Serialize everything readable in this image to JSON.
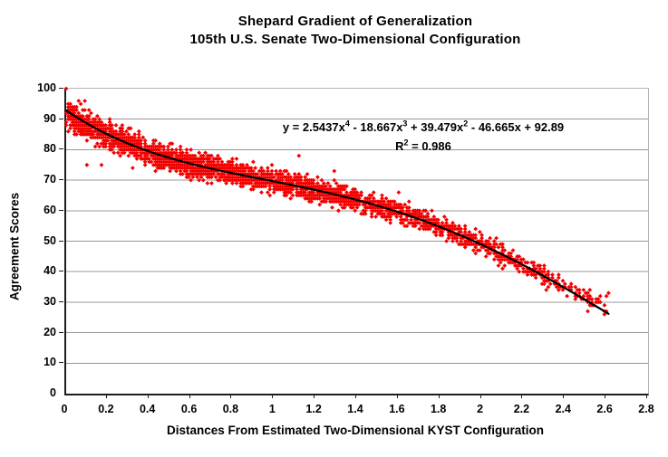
{
  "title": {
    "line1": "Shepard Gradient of Generalization",
    "line2": "105th U.S. Senate Two-Dimensional Configuration"
  },
  "equation": {
    "line1_parts": [
      [
        "y = 2.5437x",
        0
      ],
      [
        "4",
        1
      ],
      [
        " - 18.667x",
        0
      ],
      [
        "3",
        1
      ],
      [
        " + 39.479x",
        0
      ],
      [
        "2",
        1
      ],
      [
        " - 46.665x + 92.89",
        0
      ]
    ],
    "line2_parts": [
      [
        "R",
        0
      ],
      [
        "2",
        1
      ],
      [
        " = 0.986",
        0
      ]
    ]
  },
  "axes": {
    "x": {
      "title": "Distances From Estimated Two-Dimensional KYST Configuration",
      "tick_values": [
        0,
        0.2,
        0.4,
        0.6,
        0.8,
        1,
        1.2,
        1.4,
        1.6,
        1.8,
        2,
        2.2,
        2.4,
        2.6,
        2.8
      ],
      "tick_labels": [
        "0",
        "0.2",
        "0.4",
        "0.6",
        "0.8",
        "1",
        "1.2",
        "1.4",
        "1.6",
        "1.8",
        "2",
        "2.2",
        "2.4",
        "2.6",
        "2.8"
      ]
    },
    "y": {
      "title": "Agreement Scores",
      "tick_values": [
        0,
        10,
        20,
        30,
        40,
        50,
        60,
        70,
        80,
        90,
        100
      ],
      "tick_labels": [
        "0",
        "10",
        "20",
        "30",
        "40",
        "50",
        "60",
        "70",
        "80",
        "90",
        "100"
      ]
    }
  },
  "chart_data": {
    "type": "scatter",
    "title": "Shepard Gradient of Generalization — 105th U.S. Senate Two-Dimensional Configuration",
    "xlabel": "Distances From Estimated Two-Dimensional KYST Configuration",
    "ylabel": "Agreement Scores",
    "xlim": [
      0,
      2.8
    ],
    "ylim": [
      0,
      100
    ],
    "grid": "horizontal",
    "legend": "none",
    "marker": "diamond",
    "colors": {
      "point": "#f40000",
      "curve": "#000000",
      "grid": "#999999",
      "axis_dark": "#1c1c1c",
      "axis_light": "#b4b4b4",
      "background": "#ffffff",
      "text": "#000000"
    },
    "trendline": {
      "type": "polynomial",
      "degree": 4,
      "coefficients_desc": [
        2.5437,
        -18.667,
        39.479,
        -46.665,
        92.89
      ],
      "equation_text": "y = 2.5437x^4 - 18.667x^3 + 39.479x^2 - 46.665x + 92.89",
      "r_squared": 0.986,
      "x_range": [
        0,
        2.61
      ],
      "sample_step": 0.03,
      "stroke_width": 2.2
    },
    "scatter_model": {
      "n_points": 3200,
      "seed": 1337,
      "x_max": 2.62,
      "x_tail_exponent": 0.6,
      "noise_sd_base": 2.1,
      "noise_sd_per_x": -0.25,
      "clamp_sigma": 2.6,
      "head_dip_below_x": 0.2,
      "head_dip_amount": -5,
      "tail_lift_above_x": 2.3,
      "tail_lift_amount": 4,
      "x_round": 0.01,
      "y_round": 1,
      "y_max": 100,
      "marker_radius": 2.4
    },
    "outlier_points": [
      [
        0,
        100
      ],
      [
        0.06,
        96
      ],
      [
        0.09,
        96
      ],
      [
        0.1,
        75
      ],
      [
        0.17,
        75
      ],
      [
        0.32,
        74
      ],
      [
        0.43,
        73
      ],
      [
        0.52,
        75
      ],
      [
        0.6,
        70
      ],
      [
        0.75,
        74
      ],
      [
        0.79,
        70
      ],
      [
        0.95,
        70
      ],
      [
        1.12,
        78
      ],
      [
        1.29,
        73
      ],
      [
        1.6,
        66
      ],
      [
        1.65,
        63
      ],
      [
        2.42,
        34
      ],
      [
        2.45,
        33
      ],
      [
        2.48,
        31
      ],
      [
        2.5,
        33
      ],
      [
        2.52,
        32
      ],
      [
        2.55,
        31
      ],
      [
        2.57,
        32
      ],
      [
        2.6,
        32
      ],
      [
        2.61,
        33
      ]
    ]
  }
}
